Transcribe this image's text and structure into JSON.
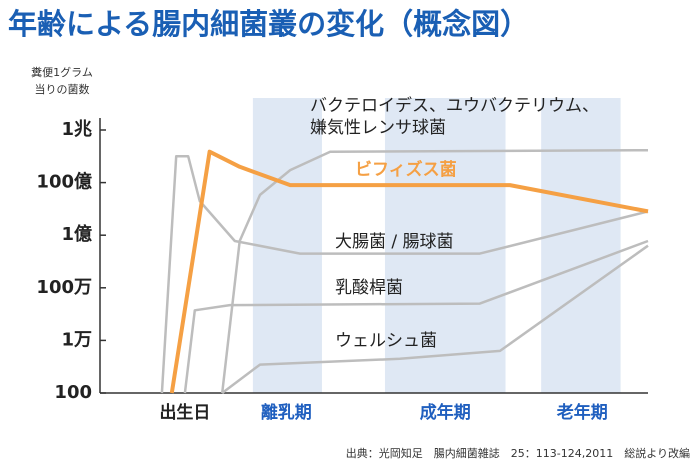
{
  "chart_data": {
    "type": "line",
    "log_y": true,
    "title": "年齢による腸内細菌叢の変化（概念図）",
    "y_label": [
      "糞便1グラム",
      "当りの菌数"
    ],
    "source": "出典：光岡知足　腸内細菌雑誌　25：113-124,2011　総説より改編",
    "xlim": [
      0,
      100
    ],
    "ylim": [
      100,
      1000000000000
    ],
    "yticks": [
      {
        "value": 100,
        "label": "100"
      },
      {
        "value": 10000,
        "label": "1万"
      },
      {
        "value": 1000000,
        "label": "100万"
      },
      {
        "value": 100000000,
        "label": "1億"
      },
      {
        "value": 10000000000,
        "label": "100億"
      },
      {
        "value": 1000000000000,
        "label": "1兆"
      }
    ],
    "xticks": [
      {
        "value": 15.5,
        "label": "出生日"
      },
      {
        "value": 34,
        "label": "離乳期"
      },
      {
        "value": 63,
        "label": "成年期"
      },
      {
        "value": 88,
        "label": "老年期"
      }
    ],
    "xtick_colors": [
      "#222222",
      "#1f5fbf",
      "#1f5fbf",
      "#1f5fbf"
    ],
    "bands": [
      [
        27.9,
        40.5
      ],
      [
        52,
        74
      ],
      [
        80.5,
        95
      ]
    ],
    "band_color": "#dfe8f4",
    "series": [
      {
        "name": [
          "バクテロイデス、ユウバクテリウム、",
          "嫌気性レンサ球菌"
        ],
        "color": "#bdbdbd",
        "x": [
          22.3,
          25.5,
          29.2,
          34.7,
          42,
          100
        ],
        "values": [
          100,
          60000000,
          3400000000,
          30000000000,
          150000000000,
          170000000000
        ]
      },
      {
        "name": "ビフィズス菌",
        "color": "#f5a044",
        "x": [
          13.1,
          20,
          25.5,
          34.7,
          74.8,
          100
        ],
        "values": [
          100,
          150000000000,
          40000000000,
          8000000000,
          8000000000,
          800000000
        ]
      },
      {
        "name": "大腸菌 / 腸球菌",
        "color": "#bdbdbd",
        "x": [
          11.3,
          13.9,
          16.1,
          18.2,
          24.6,
          36.5,
          69.3,
          100
        ],
        "values": [
          100,
          100000000000,
          100000000000,
          2000000000,
          60000000,
          20000000,
          20000000,
          800000000
        ]
      },
      {
        "name": "乳酸桿菌",
        "color": "#bdbdbd",
        "x": [
          15.5,
          17.3,
          23.7,
          69.3,
          100
        ],
        "values": [
          100,
          140000,
          220000,
          250000,
          60000000
        ]
      },
      {
        "name": "ウェルシュ菌",
        "color": "#bdbdbd",
        "x": [
          22.3,
          29.2,
          54.7,
          73,
          100
        ],
        "values": [
          100,
          1200,
          2000,
          4000,
          40000000
        ]
      }
    ]
  }
}
